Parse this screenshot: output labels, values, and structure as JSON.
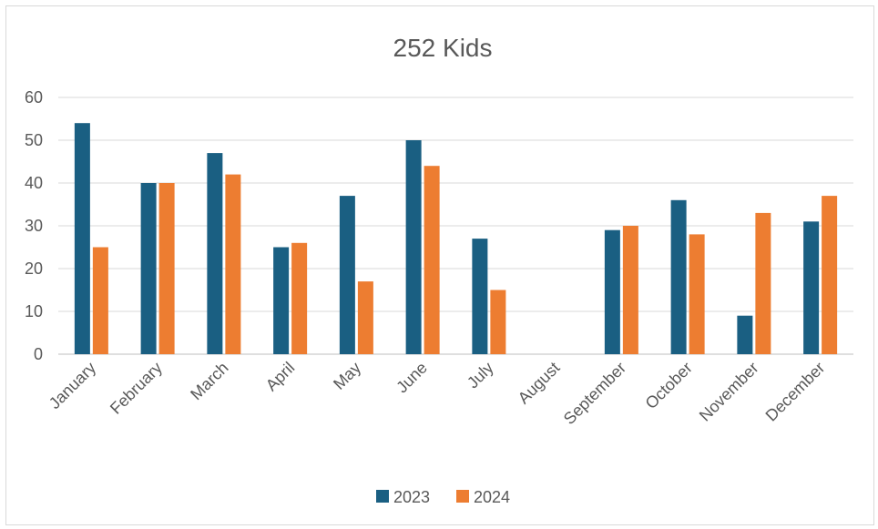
{
  "chart_data": {
    "type": "bar",
    "title": "252 Kids",
    "categories": [
      "January",
      "February",
      "March",
      "April",
      "May",
      "June",
      "July",
      "August",
      "September",
      "October",
      "November",
      "December"
    ],
    "series": [
      {
        "name": "2023",
        "color": "#1a5f82",
        "values": [
          54,
          40,
          47,
          25,
          37,
          50,
          27,
          null,
          29,
          36,
          9,
          31
        ]
      },
      {
        "name": "2024",
        "color": "#ed7d31",
        "values": [
          25,
          40,
          42,
          26,
          17,
          44,
          15,
          null,
          30,
          28,
          33,
          37
        ]
      }
    ],
    "ylim": [
      0,
      60
    ],
    "yticks": [
      0,
      10,
      20,
      30,
      40,
      50,
      60
    ],
    "grid": true,
    "legend_position": "bottom",
    "xlabel": "",
    "ylabel": ""
  }
}
